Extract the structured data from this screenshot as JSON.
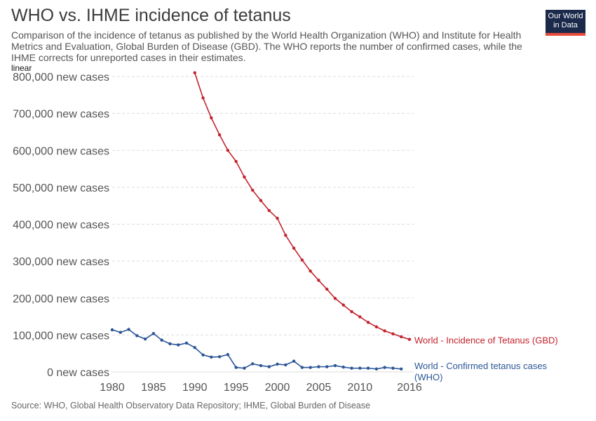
{
  "header": {
    "title": "WHO vs. IHME incidence of tetanus",
    "subtitle": "Comparison of the incidence of tetanus as published by the World Health Organization (WHO) and Institute for Health Metrics and Evaluation, Global Burden of Disease (GBD). The WHO reports the number of confirmed cases, while the IHME corrects for unreported cases in their estimates.",
    "logo_line1": "Our World",
    "logo_line2": "in Data",
    "scale_label": "linear"
  },
  "footer": {
    "source": "Source: WHO, Global Health Observatory Data Repository; IHME, Global Burden of Disease"
  },
  "colors": {
    "gbd": "#c3232e",
    "who": "#2b5697",
    "grid": "#dddddd",
    "tick": "#555555"
  },
  "chart_data": {
    "type": "line",
    "xlim": [
      1980,
      2016
    ],
    "ylim": [
      0,
      800000
    ],
    "x_ticks": [
      1980,
      1985,
      1990,
      1995,
      2000,
      2005,
      2010,
      2016
    ],
    "x_tick_labels": [
      "1980",
      "1985",
      "1990",
      "1995",
      "2000",
      "2005",
      "2010",
      "2016"
    ],
    "y_ticks": [
      0,
      100000,
      200000,
      300000,
      400000,
      500000,
      600000,
      700000,
      800000
    ],
    "y_tick_labels": [
      "0 new cases",
      "100,000 new cases",
      "200,000 new cases",
      "300,000 new cases",
      "400,000 new cases",
      "500,000 new cases",
      "600,000 new cases",
      "700,000 new cases",
      "800,000 new cases"
    ],
    "grid": true,
    "series": [
      {
        "name": "World - Incidence of Tetanus (GBD)",
        "x": [
          1990,
          1991,
          1992,
          1993,
          1994,
          1995,
          1996,
          1997,
          1998,
          1999,
          2000,
          2001,
          2002,
          2003,
          2004,
          2005,
          2006,
          2007,
          2008,
          2009,
          2010,
          2011,
          2012,
          2013,
          2014,
          2015,
          2016
        ],
        "y": [
          810000,
          742000,
          688000,
          642000,
          600000,
          570000,
          528000,
          492000,
          464000,
          437000,
          416000,
          370000,
          335000,
          303000,
          273000,
          248000,
          224000,
          199000,
          181000,
          163000,
          149000,
          134000,
          122000,
          111000,
          103000,
          95000,
          88000
        ]
      },
      {
        "name": "World - Confirmed tetanus cases (WHO)",
        "x": [
          1980,
          1981,
          1982,
          1983,
          1984,
          1985,
          1986,
          1987,
          1988,
          1989,
          1990,
          1991,
          1992,
          1993,
          1994,
          1995,
          1996,
          1997,
          1998,
          1999,
          2000,
          2001,
          2002,
          2003,
          2004,
          2005,
          2006,
          2007,
          2008,
          2009,
          2010,
          2011,
          2012,
          2013,
          2014,
          2015
        ],
        "y": [
          114000,
          107000,
          115000,
          98000,
          89000,
          104000,
          86000,
          76000,
          73000,
          78000,
          66000,
          46000,
          40000,
          41000,
          47000,
          12000,
          10000,
          22000,
          17000,
          14000,
          21000,
          19000,
          29000,
          12000,
          12000,
          14000,
          14000,
          17000,
          13000,
          10000,
          10000,
          10000,
          8000,
          12000,
          10000,
          8000
        ]
      }
    ]
  }
}
